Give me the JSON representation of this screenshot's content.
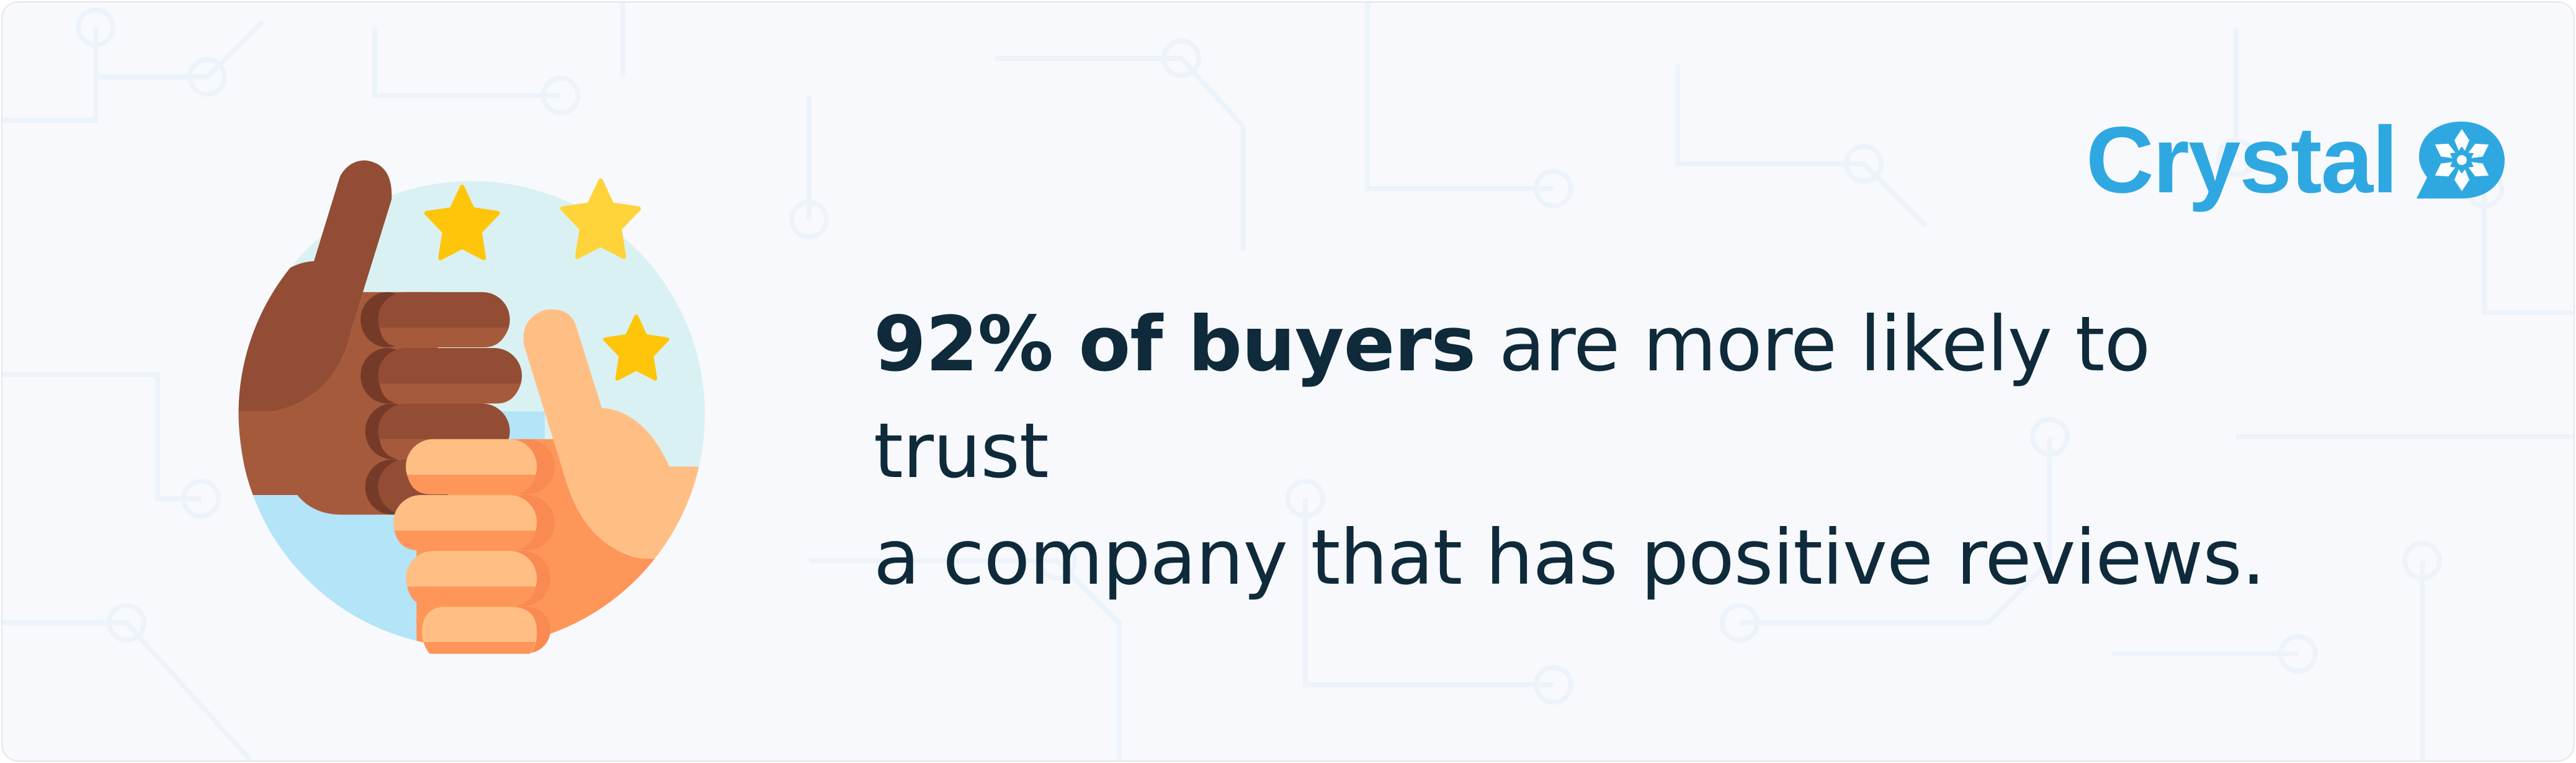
{
  "headline": {
    "highlight": "92% of buyers",
    "line1_rest": " are more likely to trust",
    "line2": "a company that has positive reviews."
  },
  "logo": {
    "text": "Crystal",
    "icon": "crystal-snowflake-bubble-icon"
  },
  "illustration": {
    "icon": "two-thumbs-up-with-stars",
    "stars_shown": 3
  },
  "colors": {
    "brand": "#2fa8e2",
    "text": "#0e2a3b",
    "star": "#fec50a",
    "background": "#f8f9fc"
  }
}
